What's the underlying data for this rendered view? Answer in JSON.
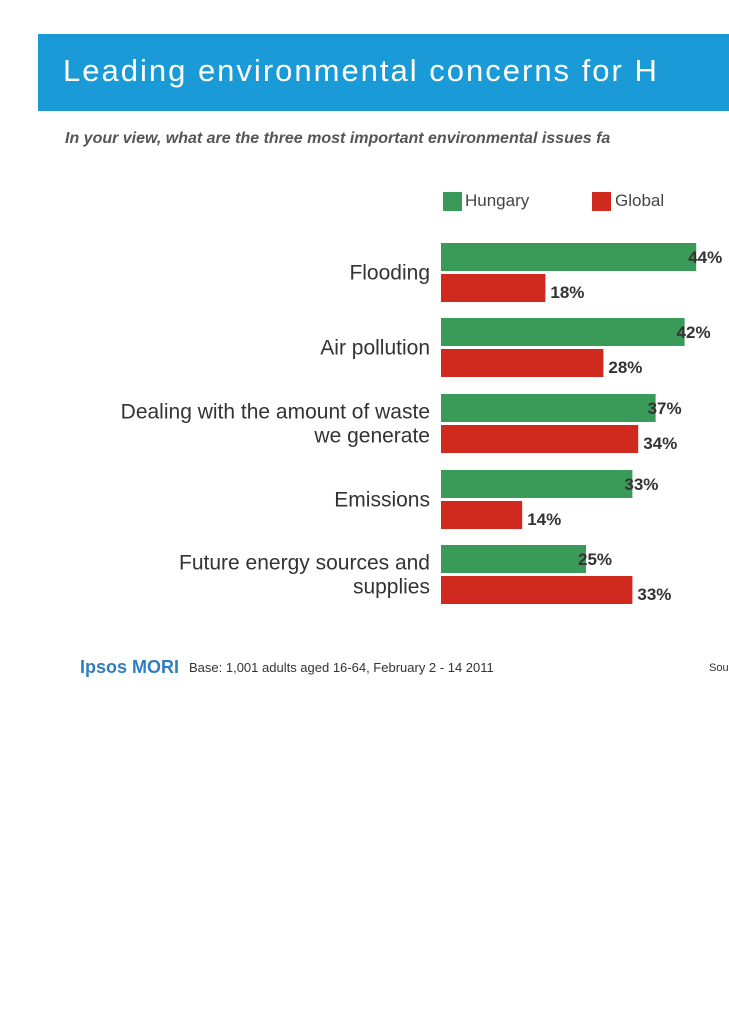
{
  "header": {
    "title": "Leading environmental concerns for H",
    "subtitle": "In your view, what are the three most important environmental issues fa"
  },
  "legend": {
    "items": [
      {
        "label": "Hungary",
        "color": "#3a9a57"
      },
      {
        "label": "Global",
        "color": "#d02a1e"
      }
    ]
  },
  "chart_data": {
    "type": "bar",
    "orientation": "horizontal",
    "categories": [
      [
        "Flooding"
      ],
      [
        "Air pollution"
      ],
      [
        "Dealing with the amount of waste",
        "we generate"
      ],
      [
        "Emissions"
      ],
      [
        "Future energy sources and",
        "supplies"
      ]
    ],
    "series": [
      {
        "name": "Hungary",
        "color": "#3a9a57",
        "values": [
          44,
          42,
          37,
          33,
          25
        ],
        "labels": [
          "44%",
          "42%",
          "37%",
          "33%",
          "25%"
        ]
      },
      {
        "name": "Global",
        "color": "#d02a1e",
        "values": [
          18,
          28,
          34,
          14,
          33
        ],
        "labels": [
          "18%",
          "28%",
          "34%",
          "14%",
          "33%"
        ]
      }
    ],
    "legend_position": "top",
    "grid": false
  },
  "footer": {
    "logo": "Ipsos MORI",
    "base": "Base: 1,001 adults aged 16-64, February 2 - 14 2011",
    "source": "Sou"
  }
}
